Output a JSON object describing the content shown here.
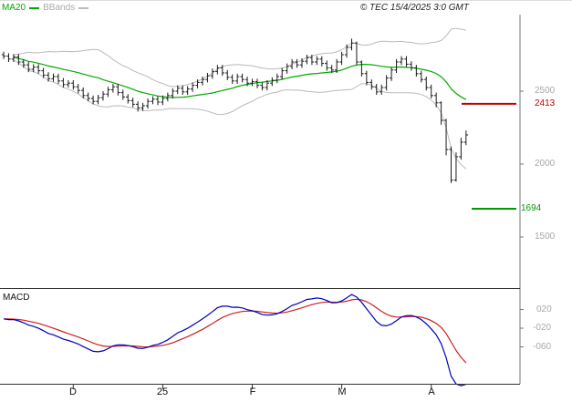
{
  "header": {
    "legend": [
      {
        "label": "MA20",
        "color": "#00aa00"
      },
      {
        "label": "BBands",
        "color": "#aaaaaa"
      }
    ],
    "copyright": "© TEC 15/4/2025 3:0 GMT"
  },
  "colors": {
    "bar": "#1a1a1a",
    "ma20": "#00aa00",
    "bband": "#bbbbbb",
    "macd": "#0000bb",
    "signal": "#cc2222",
    "axis": "#777777",
    "frame": "#333333",
    "tick_text": "#a8a8a8"
  },
  "chart_data": [
    {
      "type": "candlestick",
      "panel": "price",
      "ylim": [
        1150,
        3025
      ],
      "yticks": [
        {
          "label": "2500",
          "value": 2500
        },
        {
          "label": "2000",
          "value": 2000
        },
        {
          "label": "1500",
          "value": 1500
        }
      ],
      "levels": [
        {
          "label": "2413",
          "value": 2413,
          "color": "#bb0000"
        },
        {
          "label": "1694",
          "value": 1694,
          "color": "#009900"
        }
      ],
      "xticks": [
        {
          "label": "D",
          "index": 14
        },
        {
          "label": "25",
          "index": 32
        },
        {
          "label": "F",
          "index": 50
        },
        {
          "label": "M",
          "index": 68
        },
        {
          "label": "A",
          "index": 86
        }
      ],
      "overlays": [
        {
          "name": "MA20",
          "window": 20,
          "color": "#00aa00"
        },
        {
          "name": "BBands",
          "window": 20,
          "mult": 2,
          "color": "#bbbbbb"
        }
      ],
      "candles": [
        [
          2750,
          2770,
          2720,
          2740
        ],
        [
          2740,
          2760,
          2700,
          2720
        ],
        [
          2720,
          2755,
          2700,
          2735
        ],
        [
          2735,
          2755,
          2680,
          2700
        ],
        [
          2700,
          2720,
          2660,
          2680
        ],
        [
          2680,
          2700,
          2630,
          2650
        ],
        [
          2650,
          2685,
          2630,
          2665
        ],
        [
          2665,
          2685,
          2620,
          2640
        ],
        [
          2640,
          2660,
          2590,
          2610
        ],
        [
          2610,
          2630,
          2565,
          2585
        ],
        [
          2585,
          2620,
          2565,
          2600
        ],
        [
          2600,
          2620,
          2550,
          2570
        ],
        [
          2570,
          2590,
          2525,
          2545
        ],
        [
          2545,
          2575,
          2525,
          2555
        ],
        [
          2555,
          2575,
          2510,
          2530
        ],
        [
          2530,
          2550,
          2485,
          2505
        ],
        [
          2505,
          2525,
          2450,
          2470
        ],
        [
          2470,
          2490,
          2430,
          2450
        ],
        [
          2450,
          2470,
          2410,
          2430
        ],
        [
          2430,
          2475,
          2410,
          2455
        ],
        [
          2455,
          2500,
          2435,
          2480
        ],
        [
          2480,
          2530,
          2460,
          2510
        ],
        [
          2510,
          2550,
          2490,
          2530
        ],
        [
          2530,
          2550,
          2470,
          2490
        ],
        [
          2490,
          2510,
          2440,
          2460
        ],
        [
          2460,
          2480,
          2415,
          2435
        ],
        [
          2435,
          2455,
          2390,
          2410
        ],
        [
          2410,
          2430,
          2360,
          2385
        ],
        [
          2385,
          2420,
          2365,
          2400
        ],
        [
          2400,
          2450,
          2380,
          2430
        ],
        [
          2430,
          2465,
          2410,
          2445
        ],
        [
          2445,
          2465,
          2405,
          2425
        ],
        [
          2425,
          2470,
          2405,
          2450
        ],
        [
          2450,
          2490,
          2430,
          2470
        ],
        [
          2470,
          2520,
          2450,
          2500
        ],
        [
          2500,
          2540,
          2480,
          2520
        ],
        [
          2520,
          2540,
          2475,
          2495
        ],
        [
          2495,
          2535,
          2475,
          2515
        ],
        [
          2515,
          2560,
          2495,
          2540
        ],
        [
          2540,
          2580,
          2520,
          2560
        ],
        [
          2560,
          2600,
          2540,
          2580
        ],
        [
          2580,
          2625,
          2560,
          2605
        ],
        [
          2605,
          2655,
          2585,
          2635
        ],
        [
          2635,
          2680,
          2615,
          2660
        ],
        [
          2660,
          2680,
          2605,
          2625
        ],
        [
          2625,
          2645,
          2575,
          2595
        ],
        [
          2595,
          2615,
          2550,
          2570
        ],
        [
          2570,
          2620,
          2550,
          2600
        ],
        [
          2600,
          2620,
          2560,
          2580
        ],
        [
          2580,
          2600,
          2535,
          2555
        ],
        [
          2555,
          2585,
          2535,
          2565
        ],
        [
          2565,
          2585,
          2520,
          2540
        ],
        [
          2540,
          2560,
          2505,
          2525
        ],
        [
          2525,
          2575,
          2505,
          2555
        ],
        [
          2555,
          2595,
          2535,
          2575
        ],
        [
          2575,
          2620,
          2555,
          2600
        ],
        [
          2600,
          2660,
          2580,
          2640
        ],
        [
          2640,
          2690,
          2620,
          2670
        ],
        [
          2670,
          2720,
          2650,
          2700
        ],
        [
          2700,
          2720,
          2660,
          2680
        ],
        [
          2680,
          2725,
          2660,
          2705
        ],
        [
          2705,
          2750,
          2685,
          2730
        ],
        [
          2730,
          2750,
          2680,
          2700
        ],
        [
          2700,
          2740,
          2680,
          2720
        ],
        [
          2720,
          2740,
          2670,
          2690
        ],
        [
          2690,
          2710,
          2640,
          2660
        ],
        [
          2660,
          2680,
          2625,
          2645
        ],
        [
          2645,
          2720,
          2625,
          2700
        ],
        [
          2700,
          2770,
          2680,
          2750
        ],
        [
          2750,
          2820,
          2730,
          2800
        ],
        [
          2800,
          2860,
          2780,
          2830
        ],
        [
          2830,
          2840,
          2680,
          2700
        ],
        [
          2700,
          2710,
          2600,
          2620
        ],
        [
          2620,
          2640,
          2540,
          2560
        ],
        [
          2560,
          2580,
          2510,
          2530
        ],
        [
          2530,
          2550,
          2475,
          2495
        ],
        [
          2495,
          2545,
          2475,
          2525
        ],
        [
          2525,
          2610,
          2505,
          2590
        ],
        [
          2590,
          2665,
          2570,
          2645
        ],
        [
          2645,
          2720,
          2625,
          2700
        ],
        [
          2700,
          2740,
          2680,
          2720
        ],
        [
          2720,
          2740,
          2665,
          2685
        ],
        [
          2685,
          2705,
          2640,
          2660
        ],
        [
          2660,
          2680,
          2600,
          2620
        ],
        [
          2620,
          2640,
          2560,
          2580
        ],
        [
          2580,
          2600,
          2505,
          2525
        ],
        [
          2525,
          2545,
          2450,
          2470
        ],
        [
          2470,
          2490,
          2390,
          2420
        ],
        [
          2420,
          2430,
          2270,
          2300
        ],
        [
          2300,
          2310,
          2060,
          2100
        ],
        [
          2100,
          2120,
          1870,
          1890
        ],
        [
          1890,
          2080,
          1880,
          2050
        ],
        [
          2050,
          2180,
          2030,
          2150
        ],
        [
          2150,
          2230,
          2130,
          2200
        ]
      ]
    },
    {
      "type": "line",
      "panel": "macd",
      "title": "MACD",
      "ylim": [
        -135,
        60
      ],
      "yticks": [
        {
          "label": "020",
          "value": 20
        },
        {
          "label": "-020",
          "value": -20
        },
        {
          "label": "-060",
          "value": -60
        }
      ],
      "derived_from": "closes of chart_data[0].candles",
      "params": {
        "fast": 12,
        "slow": 26,
        "signal": 9
      },
      "series": [
        {
          "name": "MACD",
          "color": "#0000bb"
        },
        {
          "name": "Signal",
          "color": "#cc2222"
        }
      ]
    }
  ]
}
